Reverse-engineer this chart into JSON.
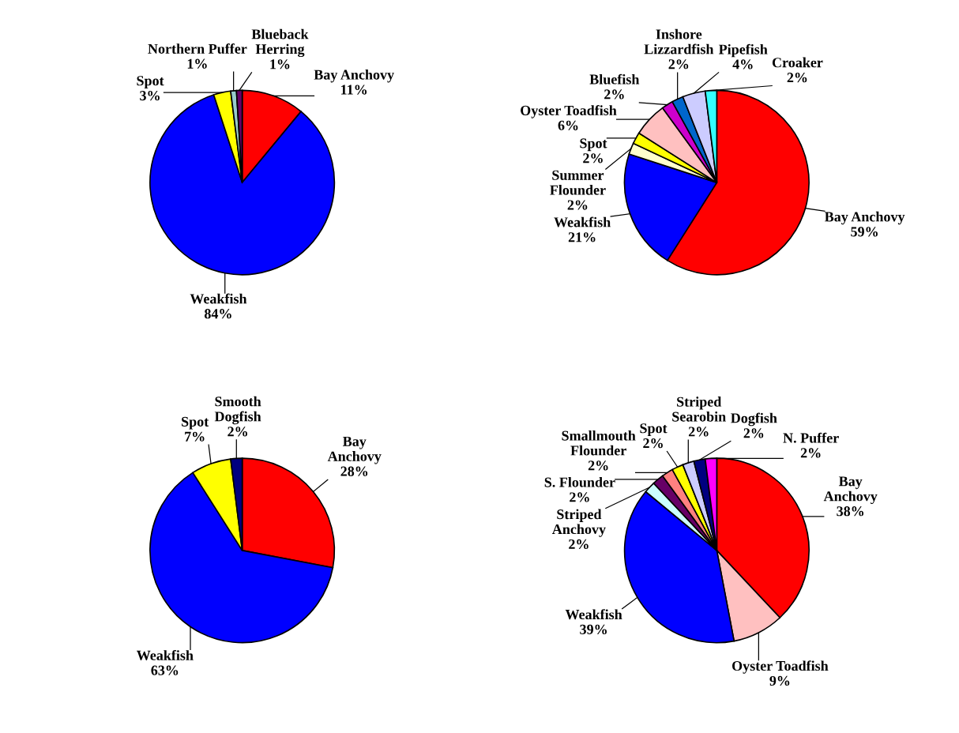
{
  "chart_data": [
    {
      "type": "pie",
      "categories": [
        "Bay Anchovy",
        "Weakfish",
        "Spot",
        "Northern Puffer",
        "Blueback\nHerring"
      ],
      "values": [
        11,
        84,
        3,
        1,
        1
      ],
      "value_labels": [
        "11%",
        "84%",
        "3%",
        "1%",
        "1%"
      ],
      "colors": [
        "#ff0000",
        "#0000ff",
        "#ffff00",
        "#99cccc",
        "#660066"
      ]
    },
    {
      "type": "pie",
      "categories": [
        "Bay Anchovy",
        "Weakfish",
        "Summer\nFlounder",
        "Spot",
        "Oyster Toadfish",
        "Bluefish",
        "Inshore\nLizzardfish",
        "Pipefish",
        "Croaker"
      ],
      "values": [
        59,
        21,
        2,
        2,
        6,
        2,
        2,
        4,
        2
      ],
      "value_labels": [
        "59%",
        "21%",
        "2%",
        "2%",
        "6%",
        "2%",
        "2%",
        "4%",
        "2%"
      ],
      "colors": [
        "#ff0000",
        "#0000ff",
        "#ffffcc",
        "#ffff00",
        "#ffc0c0",
        "#cc00cc",
        "#0066cc",
        "#ccccff",
        "#33ffff"
      ]
    },
    {
      "type": "pie",
      "categories": [
        "Bay\nAnchovy",
        "Weakfish",
        "Spot",
        "Smooth\nDogfish"
      ],
      "values": [
        28,
        63,
        7,
        2
      ],
      "value_labels": [
        "28%",
        "63%",
        "7%",
        "2%"
      ],
      "colors": [
        "#ff0000",
        "#0000ff",
        "#ffff00",
        "#000080"
      ]
    },
    {
      "type": "pie",
      "categories": [
        "Bay\nAnchovy",
        "Oyster Toadfish",
        "Weakfish",
        "Striped\nAnchovy",
        "S. Flounder",
        "Smallmouth\nFlounder",
        "Spot",
        "Striped\nSearobin",
        "Dogfish",
        "N. Puffer"
      ],
      "values": [
        38,
        9,
        39,
        2,
        2,
        2,
        2,
        2,
        2,
        2
      ],
      "value_labels": [
        "38%",
        "9%",
        "39%",
        "2%",
        "2%",
        "2%",
        "2%",
        "2%",
        "2%",
        "2%"
      ],
      "colors": [
        "#ff0000",
        "#ffc0c0",
        "#0000ff",
        "#ccffff",
        "#660066",
        "#ff8080",
        "#ffff00",
        "#ccccff",
        "#000080",
        "#ff00ff"
      ]
    }
  ]
}
